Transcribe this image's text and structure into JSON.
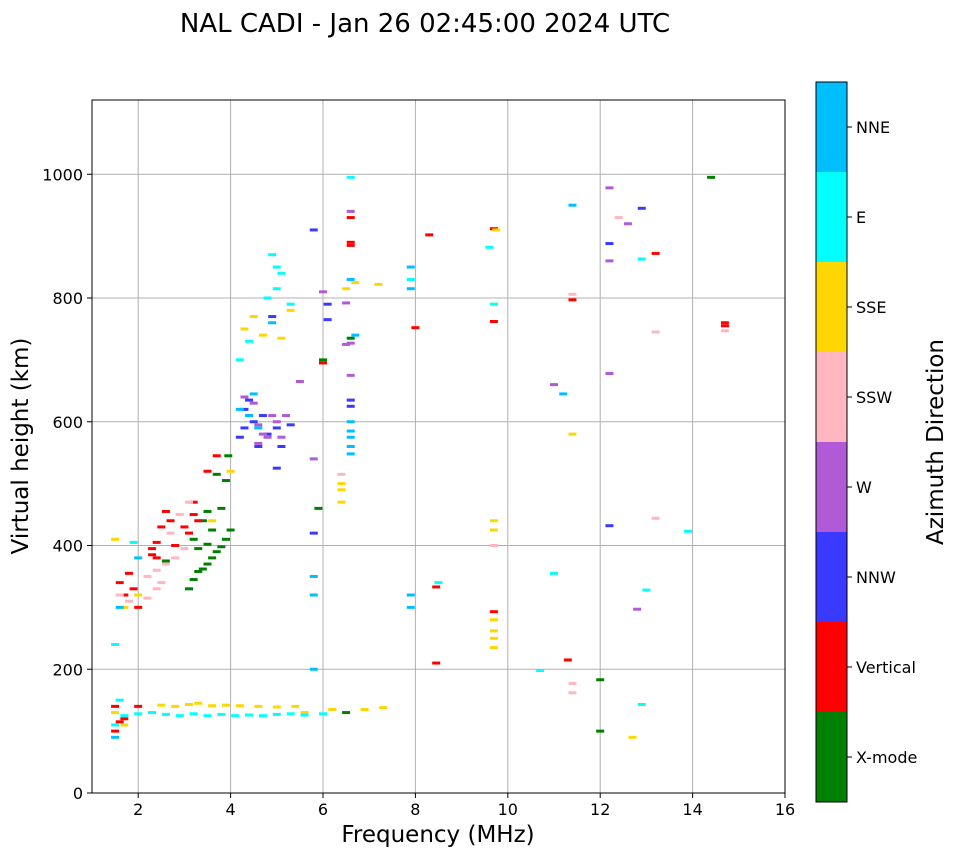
{
  "chart_data": {
    "type": "scatter",
    "title": "NAL CADI - Jan 26 02:45:00 2024 UTC",
    "xlabel": "Frequency (MHz)",
    "ylabel": "Virtual height (km)",
    "xlim": [
      1,
      16
    ],
    "ylim": [
      0,
      1120
    ],
    "xticks": [
      2,
      4,
      6,
      8,
      10,
      12,
      14,
      16
    ],
    "yticks": [
      0,
      200,
      400,
      600,
      800,
      1000
    ],
    "grid": true,
    "colorbar": {
      "label": "Azimuth Direction",
      "categories": [
        {
          "name": "X-mode",
          "color": "#008000"
        },
        {
          "name": "Vertical",
          "color": "#ff0000"
        },
        {
          "name": "NNW",
          "color": "#3a3aff"
        },
        {
          "name": "W",
          "color": "#b05ad8"
        },
        {
          "name": "SSW",
          "color": "#ffb6c1"
        },
        {
          "name": "SSE",
          "color": "#ffd700"
        },
        {
          "name": "E",
          "color": "#00ffff"
        },
        {
          "name": "NNE",
          "color": "#00bfff"
        }
      ]
    },
    "series": [
      {
        "name": "X-mode",
        "points": [
          [
            3.1,
            330
          ],
          [
            3.2,
            345
          ],
          [
            3.3,
            358
          ],
          [
            3.4,
            362
          ],
          [
            3.5,
            370
          ],
          [
            3.6,
            380
          ],
          [
            3.7,
            390
          ],
          [
            3.8,
            398
          ],
          [
            3.9,
            410
          ],
          [
            4.0,
            425
          ],
          [
            3.3,
            395
          ],
          [
            3.5,
            402
          ],
          [
            3.6,
            425
          ],
          [
            3.8,
            460
          ],
          [
            3.9,
            505
          ],
          [
            3.95,
            545
          ],
          [
            3.7,
            515
          ],
          [
            3.5,
            455
          ],
          [
            6.0,
            700
          ],
          [
            6.6,
            735
          ],
          [
            6.5,
            130
          ],
          [
            12.0,
            100
          ],
          [
            12.0,
            183
          ],
          [
            14.4,
            995
          ],
          [
            5.9,
            460
          ],
          [
            2.6,
            375
          ],
          [
            3.2,
            410
          ],
          [
            3.4,
            440
          ]
        ]
      },
      {
        "name": "Vertical",
        "points": [
          [
            1.5,
            100
          ],
          [
            1.5,
            140
          ],
          [
            1.6,
            115
          ],
          [
            1.7,
            120
          ],
          [
            2.0,
            140
          ],
          [
            1.6,
            340
          ],
          [
            1.7,
            320
          ],
          [
            1.8,
            355
          ],
          [
            1.9,
            330
          ],
          [
            2.0,
            300
          ],
          [
            2.3,
            385
          ],
          [
            2.3,
            395
          ],
          [
            2.4,
            405
          ],
          [
            2.4,
            380
          ],
          [
            2.5,
            430
          ],
          [
            2.6,
            455
          ],
          [
            2.7,
            440
          ],
          [
            2.8,
            400
          ],
          [
            3.0,
            430
          ],
          [
            3.1,
            420
          ],
          [
            3.2,
            450
          ],
          [
            3.5,
            520
          ],
          [
            3.7,
            545
          ],
          [
            3.2,
            470
          ],
          [
            3.3,
            440
          ],
          [
            6.0,
            695
          ],
          [
            6.6,
            885
          ],
          [
            6.6,
            890
          ],
          [
            6.6,
            930
          ],
          [
            8.0,
            752
          ],
          [
            8.3,
            902
          ],
          [
            8.45,
            210
          ],
          [
            8.45,
            333
          ],
          [
            9.7,
            293
          ],
          [
            9.7,
            762
          ],
          [
            9.7,
            912
          ],
          [
            11.3,
            215
          ],
          [
            11.4,
            797
          ],
          [
            13.2,
            872
          ],
          [
            14.7,
            755
          ],
          [
            14.7,
            760
          ]
        ]
      },
      {
        "name": "NNW",
        "points": [
          [
            4.3,
            620
          ],
          [
            4.5,
            600
          ],
          [
            4.8,
            580
          ],
          [
            5.0,
            590
          ],
          [
            4.9,
            770
          ],
          [
            5.1,
            560
          ],
          [
            4.6,
            560
          ],
          [
            5.3,
            595
          ],
          [
            4.2,
            575
          ],
          [
            4.7,
            610
          ],
          [
            6.1,
            790
          ],
          [
            6.1,
            765
          ],
          [
            6.6,
            625
          ],
          [
            6.6,
            635
          ],
          [
            5.8,
            420
          ],
          [
            5.8,
            910
          ],
          [
            5.0,
            525
          ],
          [
            12.2,
            432
          ],
          [
            12.2,
            888
          ],
          [
            12.9,
            945
          ],
          [
            4.4,
            635
          ],
          [
            4.3,
            590
          ]
        ]
      },
      {
        "name": "W",
        "points": [
          [
            4.4,
            610
          ],
          [
            4.6,
            595
          ],
          [
            4.8,
            575
          ],
          [
            5.0,
            600
          ],
          [
            5.2,
            610
          ],
          [
            4.5,
            630
          ],
          [
            4.7,
            580
          ],
          [
            4.9,
            610
          ],
          [
            5.1,
            575
          ],
          [
            4.3,
            640
          ],
          [
            4.6,
            565
          ],
          [
            6.5,
            725
          ],
          [
            6.6,
            727
          ],
          [
            6.6,
            675
          ],
          [
            6.6,
            940
          ],
          [
            6.5,
            792
          ],
          [
            11.0,
            660
          ],
          [
            12.2,
            678
          ],
          [
            12.2,
            860
          ],
          [
            12.2,
            978
          ],
          [
            12.6,
            920
          ],
          [
            12.8,
            297
          ],
          [
            6.0,
            810
          ],
          [
            5.5,
            665
          ],
          [
            5.8,
            540
          ]
        ]
      },
      {
        "name": "SSW",
        "points": [
          [
            1.6,
            320
          ],
          [
            1.8,
            310
          ],
          [
            2.2,
            350
          ],
          [
            2.4,
            360
          ],
          [
            2.6,
            370
          ],
          [
            2.8,
            380
          ],
          [
            3.0,
            395
          ],
          [
            2.5,
            340
          ],
          [
            2.7,
            420
          ],
          [
            2.9,
            450
          ],
          [
            3.1,
            470
          ],
          [
            6.4,
            515
          ],
          [
            9.7,
            400
          ],
          [
            11.4,
            162
          ],
          [
            11.4,
            177
          ],
          [
            11.4,
            806
          ],
          [
            12.4,
            930
          ],
          [
            13.2,
            745
          ],
          [
            13.2,
            444
          ],
          [
            14.7,
            747
          ],
          [
            2.2,
            315
          ],
          [
            2.4,
            330
          ]
        ]
      },
      {
        "name": "SSE",
        "points": [
          [
            1.5,
            130
          ],
          [
            1.7,
            110
          ],
          [
            2.5,
            142
          ],
          [
            2.8,
            140
          ],
          [
            3.1,
            143
          ],
          [
            3.3,
            145
          ],
          [
            3.6,
            141
          ],
          [
            3.9,
            142
          ],
          [
            4.2,
            141
          ],
          [
            4.6,
            140
          ],
          [
            5.0,
            139
          ],
          [
            5.4,
            140
          ],
          [
            5.6,
            130
          ],
          [
            6.2,
            135
          ],
          [
            6.9,
            135
          ],
          [
            7.3,
            138
          ],
          [
            4.3,
            750
          ],
          [
            4.5,
            770
          ],
          [
            4.7,
            740
          ],
          [
            5.1,
            735
          ],
          [
            5.3,
            780
          ],
          [
            6.4,
            490
          ],
          [
            6.4,
            500
          ],
          [
            6.4,
            470
          ],
          [
            6.5,
            815
          ],
          [
            6.7,
            825
          ],
          [
            7.2,
            822
          ],
          [
            9.7,
            235
          ],
          [
            9.7,
            250
          ],
          [
            9.7,
            262
          ],
          [
            9.7,
            280
          ],
          [
            9.7,
            425
          ],
          [
            9.7,
            440
          ],
          [
            9.75,
            910
          ],
          [
            11.4,
            580
          ],
          [
            12.7,
            90
          ],
          [
            1.7,
            300
          ],
          [
            2.0,
            320
          ],
          [
            3.6,
            440
          ],
          [
            4.0,
            520
          ],
          [
            1.5,
            410
          ]
        ]
      },
      {
        "name": "E",
        "points": [
          [
            2.0,
            128
          ],
          [
            2.3,
            130
          ],
          [
            2.6,
            127
          ],
          [
            2.9,
            125
          ],
          [
            3.2,
            128
          ],
          [
            3.5,
            125
          ],
          [
            3.8,
            127
          ],
          [
            4.1,
            125
          ],
          [
            4.4,
            126
          ],
          [
            4.7,
            125
          ],
          [
            5.0,
            127
          ],
          [
            5.3,
            128
          ],
          [
            5.6,
            126
          ],
          [
            6.0,
            128
          ],
          [
            1.6,
            150
          ],
          [
            1.7,
            125
          ],
          [
            1.5,
            110
          ],
          [
            4.4,
            730
          ],
          [
            4.9,
            870
          ],
          [
            5.0,
            850
          ],
          [
            5.1,
            840
          ],
          [
            5.0,
            815
          ],
          [
            4.8,
            800
          ],
          [
            5.3,
            790
          ],
          [
            4.2,
            700
          ],
          [
            6.6,
            995
          ],
          [
            7.9,
            830
          ],
          [
            9.7,
            790
          ],
          [
            9.6,
            882
          ],
          [
            11.0,
            355
          ],
          [
            10.7,
            198
          ],
          [
            12.9,
            863
          ],
          [
            12.9,
            143
          ],
          [
            13.9,
            423
          ],
          [
            13.0,
            328
          ],
          [
            8.5,
            340
          ],
          [
            1.9,
            405
          ],
          [
            1.5,
            240
          ]
        ]
      },
      {
        "name": "NNE",
        "points": [
          [
            4.2,
            620
          ],
          [
            4.4,
            610
          ],
          [
            4.5,
            645
          ],
          [
            4.6,
            590
          ],
          [
            6.6,
            548
          ],
          [
            6.6,
            560
          ],
          [
            6.6,
            575
          ],
          [
            6.6,
            585
          ],
          [
            6.6,
            600
          ],
          [
            6.6,
            830
          ],
          [
            6.7,
            740
          ],
          [
            7.9,
            815
          ],
          [
            7.9,
            850
          ],
          [
            7.9,
            320
          ],
          [
            7.9,
            300
          ],
          [
            11.4,
            950
          ],
          [
            11.2,
            645
          ],
          [
            5.8,
            200
          ],
          [
            5.8,
            320
          ],
          [
            5.8,
            350
          ],
          [
            1.5,
            90
          ],
          [
            1.6,
            300
          ],
          [
            2.0,
            380
          ],
          [
            4.9,
            760
          ]
        ]
      }
    ]
  }
}
